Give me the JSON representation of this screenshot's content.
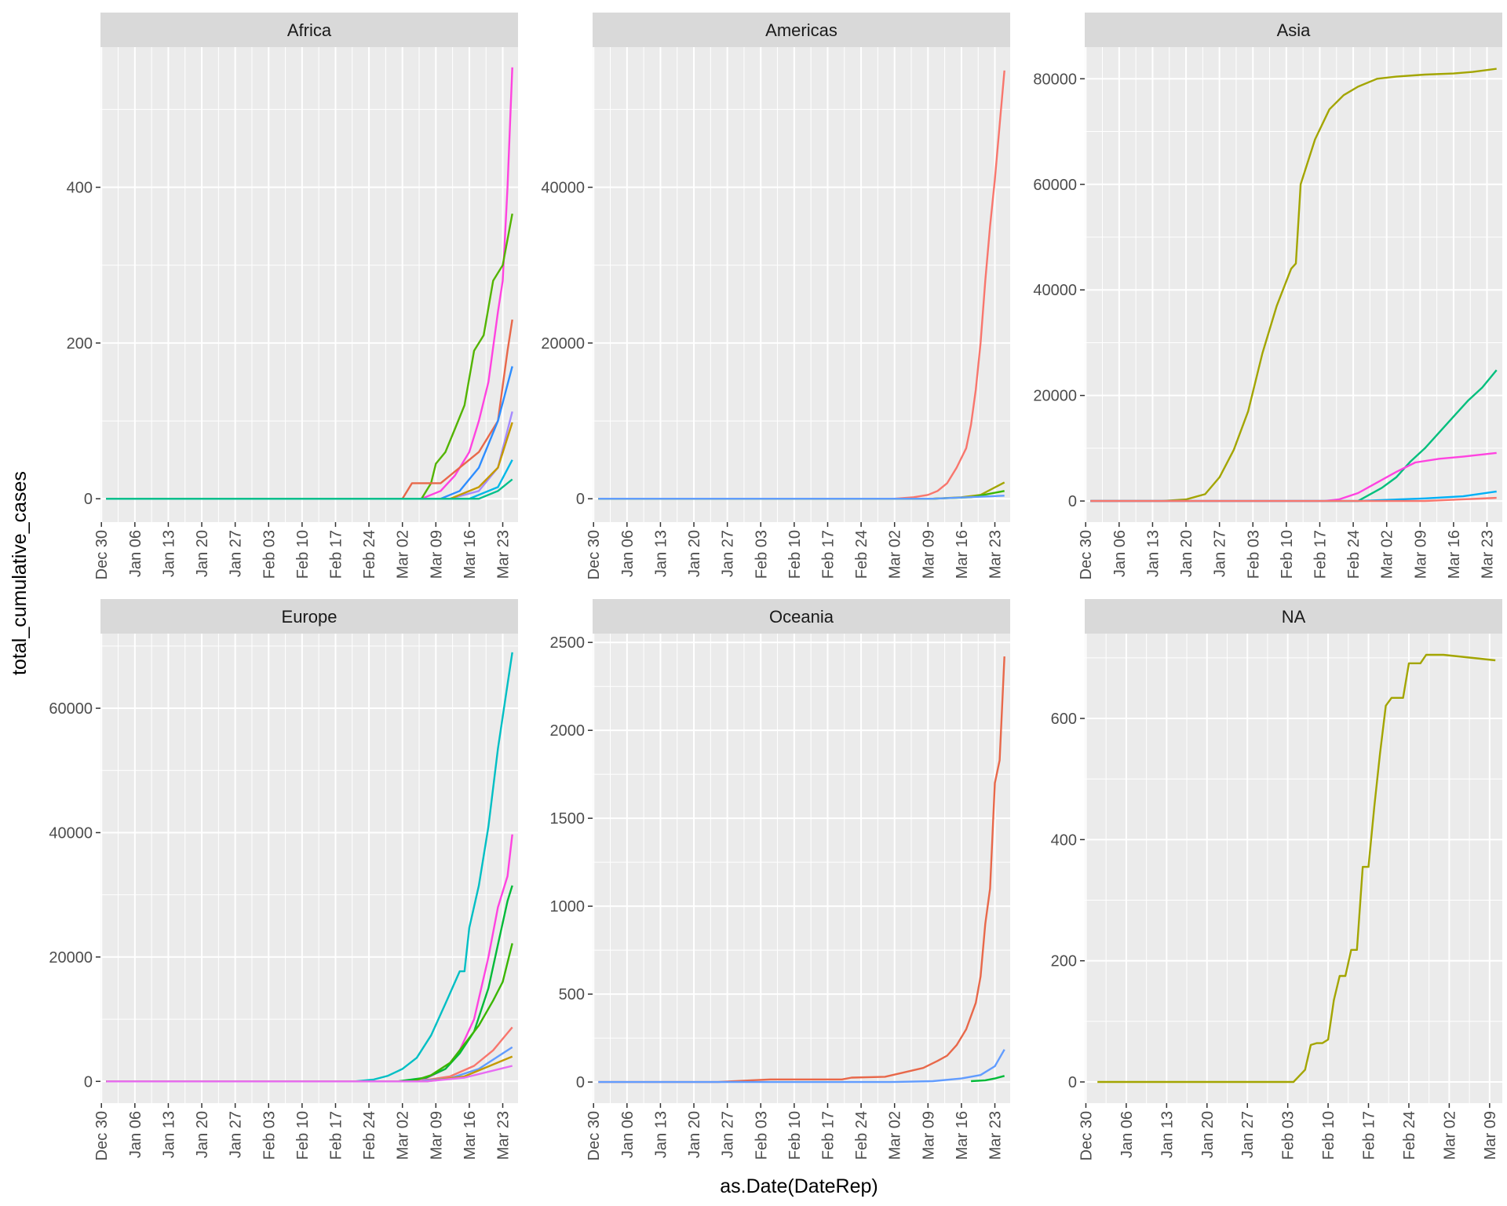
{
  "figure": {
    "ylabel": "total_cumulative_cases",
    "xlabel": "as.Date(DateRep)"
  },
  "chart_data": [
    {
      "type": "line",
      "title": "Africa",
      "x_ticks": [
        "Dec 30",
        "Jan 06",
        "Jan 13",
        "Jan 20",
        "Jan 27",
        "Feb 03",
        "Feb 10",
        "Feb 17",
        "Feb 24",
        "Mar 02",
        "Mar 09",
        "Mar 16",
        "Mar 23"
      ],
      "y_ticks": [
        0,
        200,
        400
      ],
      "xlim": [
        "2019-12-31",
        "2020-03-25"
      ],
      "ylim": [
        -30,
        580
      ],
      "grid": true,
      "series": [
        {
          "color": "#FF43E0",
          "x": [
            "2019-12-31",
            "2020-03-06",
            "2020-03-10",
            "2020-03-13",
            "2020-03-16",
            "2020-03-18",
            "2020-03-20",
            "2020-03-22",
            "2020-03-23",
            "2020-03-24",
            "2020-03-25"
          ],
          "y": [
            0,
            0,
            10,
            30,
            60,
            100,
            150,
            240,
            280,
            400,
            554
          ]
        },
        {
          "color": "#53B400",
          "x": [
            "2019-12-31",
            "2020-03-06",
            "2020-03-08",
            "2020-03-09",
            "2020-03-11",
            "2020-03-13",
            "2020-03-15",
            "2020-03-17",
            "2020-03-19",
            "2020-03-21",
            "2020-03-23",
            "2020-03-25"
          ],
          "y": [
            0,
            0,
            20,
            45,
            60,
            90,
            120,
            190,
            210,
            280,
            300,
            366
          ]
        },
        {
          "color": "#E8684A",
          "x": [
            "2019-12-31",
            "2020-03-02",
            "2020-03-04",
            "2020-03-06",
            "2020-03-10",
            "2020-03-14",
            "2020-03-18",
            "2020-03-22",
            "2020-03-24",
            "2020-03-25"
          ],
          "y": [
            0,
            0,
            20,
            20,
            20,
            40,
            60,
            100,
            190,
            230
          ]
        },
        {
          "color": "#2D8DFF",
          "x": [
            "2019-12-31",
            "2020-03-10",
            "2020-03-14",
            "2020-03-18",
            "2020-03-22",
            "2020-03-25"
          ],
          "y": [
            0,
            0,
            10,
            40,
            100,
            170
          ]
        },
        {
          "color": "#A58AFF",
          "x": [
            "2019-12-31",
            "2020-03-12",
            "2020-03-18",
            "2020-03-22",
            "2020-03-25"
          ],
          "y": [
            0,
            0,
            10,
            40,
            112
          ]
        },
        {
          "color": "#C49A00",
          "x": [
            "2019-12-31",
            "2020-03-12",
            "2020-03-18",
            "2020-03-22",
            "2020-03-25"
          ],
          "y": [
            0,
            0,
            15,
            40,
            98
          ]
        },
        {
          "color": "#00B8E7",
          "x": [
            "2019-12-31",
            "2020-03-16",
            "2020-03-22",
            "2020-03-25"
          ],
          "y": [
            0,
            0,
            15,
            50
          ]
        },
        {
          "color": "#00C08B",
          "x": [
            "2019-12-31",
            "2020-03-18",
            "2020-03-22",
            "2020-03-25"
          ],
          "y": [
            0,
            0,
            10,
            25
          ]
        }
      ]
    },
    {
      "type": "line",
      "title": "Americas",
      "x_ticks": [
        "Dec 30",
        "Jan 06",
        "Jan 13",
        "Jan 20",
        "Jan 27",
        "Feb 03",
        "Feb 10",
        "Feb 17",
        "Feb 24",
        "Mar 02",
        "Mar 09",
        "Mar 16",
        "Mar 23"
      ],
      "y_ticks": [
        0,
        20000,
        40000
      ],
      "xlim": [
        "2019-12-31",
        "2020-03-25"
      ],
      "ylim": [
        -3000,
        58000
      ],
      "grid": true,
      "series": [
        {
          "color": "#F8766D",
          "x": [
            "2019-12-31",
            "2020-03-02",
            "2020-03-06",
            "2020-03-09",
            "2020-03-11",
            "2020-03-13",
            "2020-03-15",
            "2020-03-17",
            "2020-03-18",
            "2020-03-19",
            "2020-03-20",
            "2020-03-21",
            "2020-03-22",
            "2020-03-23",
            "2020-03-24",
            "2020-03-25"
          ],
          "y": [
            0,
            0,
            200,
            500,
            1000,
            2000,
            4000,
            6500,
            9500,
            14000,
            20000,
            28000,
            35000,
            41000,
            48000,
            55000
          ]
        },
        {
          "color": "#A3A500",
          "x": [
            "2019-12-31",
            "2020-03-10",
            "2020-03-16",
            "2020-03-20",
            "2020-03-25"
          ],
          "y": [
            0,
            0,
            200,
            500,
            2100
          ]
        },
        {
          "color": "#39B600",
          "x": [
            "2019-12-31",
            "2020-03-10",
            "2020-03-18",
            "2020-03-25"
          ],
          "y": [
            0,
            0,
            200,
            1000
          ]
        },
        {
          "color": "#619CFF",
          "x": [
            "2019-12-31",
            "2020-03-10",
            "2020-03-25"
          ],
          "y": [
            0,
            0,
            400
          ]
        }
      ]
    },
    {
      "type": "line",
      "title": "Asia",
      "x_ticks": [
        "Dec 30",
        "Jan 06",
        "Jan 13",
        "Jan 20",
        "Jan 27",
        "Feb 03",
        "Feb 10",
        "Feb 17",
        "Feb 24",
        "Mar 02",
        "Mar 09",
        "Mar 16",
        "Mar 23"
      ],
      "y_ticks": [
        0,
        20000,
        40000,
        60000,
        80000
      ],
      "xlim": [
        "2019-12-31",
        "2020-03-25"
      ],
      "ylim": [
        -4000,
        86000
      ],
      "grid": true,
      "series": [
        {
          "color": "#A3A500",
          "x": [
            "2019-12-31",
            "2020-01-15",
            "2020-01-20",
            "2020-01-24",
            "2020-01-27",
            "2020-01-30",
            "2020-02-02",
            "2020-02-05",
            "2020-02-08",
            "2020-02-11",
            "2020-02-12",
            "2020-02-13",
            "2020-02-16",
            "2020-02-19",
            "2020-02-22",
            "2020-02-25",
            "2020-02-29",
            "2020-03-04",
            "2020-03-10",
            "2020-03-16",
            "2020-03-20",
            "2020-03-25"
          ],
          "y": [
            0,
            0,
            300,
            1300,
            4500,
            9700,
            17000,
            28000,
            37000,
            44000,
            45000,
            60000,
            68500,
            74200,
            76900,
            78500,
            80000,
            80400,
            80800,
            81000,
            81300,
            81900
          ]
        },
        {
          "color": "#00BF7D",
          "x": [
            "2019-12-31",
            "2020-02-25",
            "2020-03-01",
            "2020-03-04",
            "2020-03-07",
            "2020-03-10",
            "2020-03-13",
            "2020-03-16",
            "2020-03-19",
            "2020-03-22",
            "2020-03-25"
          ],
          "y": [
            0,
            0,
            2500,
            4500,
            7500,
            10000,
            13000,
            16000,
            19000,
            21500,
            24800
          ]
        },
        {
          "color": "#FF43E0",
          "x": [
            "2019-12-31",
            "2020-02-18",
            "2020-02-21",
            "2020-02-25",
            "2020-02-29",
            "2020-03-04",
            "2020-03-08",
            "2020-03-13",
            "2020-03-18",
            "2020-03-25"
          ],
          "y": [
            0,
            0,
            300,
            1500,
            3500,
            5500,
            7300,
            8000,
            8400,
            9100
          ]
        },
        {
          "color": "#00B0F6",
          "x": [
            "2019-12-31",
            "2020-02-25",
            "2020-03-10",
            "2020-03-18",
            "2020-03-25"
          ],
          "y": [
            0,
            0,
            500,
            900,
            1800
          ]
        },
        {
          "color": "#F8766D",
          "x": [
            "2019-12-31",
            "2020-03-10",
            "2020-03-25"
          ],
          "y": [
            0,
            0,
            600
          ]
        }
      ]
    },
    {
      "type": "line",
      "title": "Europe",
      "x_ticks": [
        "Dec 30",
        "Jan 06",
        "Jan 13",
        "Jan 20",
        "Jan 27",
        "Feb 03",
        "Feb 10",
        "Feb 17",
        "Feb 24",
        "Mar 02",
        "Mar 09",
        "Mar 16",
        "Mar 23"
      ],
      "y_ticks": [
        0,
        20000,
        40000,
        60000
      ],
      "xlim": [
        "2019-12-31",
        "2020-03-25"
      ],
      "ylim": [
        -3500,
        72000
      ],
      "grid": true,
      "series": [
        {
          "color": "#00BFC4",
          "x": [
            "2019-12-31",
            "2020-02-21",
            "2020-02-25",
            "2020-02-28",
            "2020-03-02",
            "2020-03-05",
            "2020-03-08",
            "2020-03-11",
            "2020-03-14",
            "2020-03-15",
            "2020-03-16",
            "2020-03-18",
            "2020-03-20",
            "2020-03-22",
            "2020-03-25"
          ],
          "y": [
            0,
            0,
            300,
            900,
            2000,
            3800,
            7400,
            12500,
            17700,
            17700,
            24700,
            31500,
            41000,
            53500,
            69000
          ]
        },
        {
          "color": "#FF43E0",
          "x": [
            "2019-12-31",
            "2020-03-01",
            "2020-03-07",
            "2020-03-11",
            "2020-03-14",
            "2020-03-17",
            "2020-03-20",
            "2020-03-22",
            "2020-03-24",
            "2020-03-25"
          ],
          "y": [
            0,
            0,
            500,
            2000,
            5000,
            10000,
            20000,
            28000,
            33000,
            39700
          ]
        },
        {
          "color": "#00BA38",
          "x": [
            "2019-12-31",
            "2020-03-01",
            "2020-03-07",
            "2020-03-11",
            "2020-03-14",
            "2020-03-17",
            "2020-03-20",
            "2020-03-22",
            "2020-03-24",
            "2020-03-25"
          ],
          "y": [
            0,
            0,
            600,
            2000,
            4500,
            8000,
            15000,
            22000,
            29000,
            31500
          ]
        },
        {
          "color": "#39B600",
          "x": [
            "2019-12-31",
            "2020-03-04",
            "2020-03-08",
            "2020-03-12",
            "2020-03-15",
            "2020-03-18",
            "2020-03-21",
            "2020-03-23",
            "2020-03-25"
          ],
          "y": [
            0,
            0,
            1000,
            3000,
            6000,
            9000,
            13000,
            16000,
            22200
          ]
        },
        {
          "color": "#F8766D",
          "x": [
            "2019-12-31",
            "2020-03-05",
            "2020-03-12",
            "2020-03-17",
            "2020-03-21",
            "2020-03-25"
          ],
          "y": [
            0,
            0,
            800,
            2500,
            5000,
            8700
          ]
        },
        {
          "color": "#619CFF",
          "x": [
            "2019-12-31",
            "2020-03-05",
            "2020-03-12",
            "2020-03-18",
            "2020-03-25"
          ],
          "y": [
            0,
            0,
            500,
            2000,
            5500
          ]
        },
        {
          "color": "#C49A00",
          "x": [
            "2019-12-31",
            "2020-03-07",
            "2020-03-15",
            "2020-03-25"
          ],
          "y": [
            0,
            0,
            800,
            4000
          ]
        },
        {
          "color": "#E76BF3",
          "x": [
            "2019-12-31",
            "2020-03-07",
            "2020-03-15",
            "2020-03-25"
          ],
          "y": [
            0,
            0,
            600,
            2500
          ]
        }
      ]
    },
    {
      "type": "line",
      "title": "Oceania",
      "x_ticks": [
        "Dec 30",
        "Jan 06",
        "Jan 13",
        "Jan 20",
        "Jan 27",
        "Feb 03",
        "Feb 10",
        "Feb 17",
        "Feb 24",
        "Mar 02",
        "Mar 09",
        "Mar 16",
        "Mar 23"
      ],
      "y_ticks": [
        0,
        500,
        1000,
        1500,
        2000,
        2500
      ],
      "xlim": [
        "2019-12-31",
        "2020-03-25"
      ],
      "ylim": [
        -120,
        2550
      ],
      "grid": true,
      "series": [
        {
          "color": "#E8684A",
          "x": [
            "2019-12-31",
            "2020-01-25",
            "2020-02-01",
            "2020-02-05",
            "2020-02-20",
            "2020-02-22",
            "2020-02-29",
            "2020-03-04",
            "2020-03-08",
            "2020-03-11",
            "2020-03-13",
            "2020-03-15",
            "2020-03-17",
            "2020-03-19",
            "2020-03-20",
            "2020-03-21",
            "2020-03-22",
            "2020-03-23",
            "2020-03-24",
            "2020-03-25"
          ],
          "y": [
            0,
            0,
            10,
            15,
            15,
            25,
            30,
            55,
            80,
            120,
            150,
            210,
            300,
            450,
            600,
            900,
            1100,
            1700,
            1830,
            2420
          ]
        },
        {
          "color": "#619CFF",
          "x": [
            "2019-12-31",
            "2020-03-01",
            "2020-03-10",
            "2020-03-16",
            "2020-03-20",
            "2020-03-23",
            "2020-03-25"
          ],
          "y": [
            0,
            0,
            5,
            20,
            40,
            90,
            185
          ]
        },
        {
          "color": "#00BA38",
          "x": [
            "2020-03-18",
            "2020-03-21",
            "2020-03-23",
            "2020-03-25"
          ],
          "y": [
            5,
            10,
            20,
            35
          ]
        }
      ]
    },
    {
      "type": "line",
      "title": "NA",
      "x_ticks": [
        "Dec 30",
        "Jan 06",
        "Jan 13",
        "Jan 20",
        "Jan 27",
        "Feb 03",
        "Feb 10",
        "Feb 17",
        "Feb 24",
        "Mar 02",
        "Mar 09"
      ],
      "y_ticks": [
        0,
        200,
        400,
        600
      ],
      "xlim": [
        "2019-12-31",
        "2020-03-10"
      ],
      "ylim": [
        -35,
        740
      ],
      "grid": true,
      "series": [
        {
          "color": "#A3A500",
          "x": [
            "2020-01-01",
            "2020-02-04",
            "2020-02-05",
            "2020-02-06",
            "2020-02-07",
            "2020-02-08",
            "2020-02-09",
            "2020-02-10",
            "2020-02-11",
            "2020-02-12",
            "2020-02-13",
            "2020-02-14",
            "2020-02-15",
            "2020-02-16",
            "2020-02-17",
            "2020-02-18",
            "2020-02-19",
            "2020-02-20",
            "2020-02-21",
            "2020-02-22",
            "2020-02-23",
            "2020-02-24",
            "2020-02-25",
            "2020-02-26",
            "2020-02-27",
            "2020-03-01",
            "2020-03-10"
          ],
          "y": [
            0,
            0,
            10,
            20,
            61,
            64,
            64,
            70,
            135,
            175,
            175,
            218,
            218,
            355,
            355,
            454,
            542,
            621,
            634,
            634,
            634,
            691,
            691,
            691,
            705,
            705,
            696
          ]
        }
      ]
    }
  ]
}
